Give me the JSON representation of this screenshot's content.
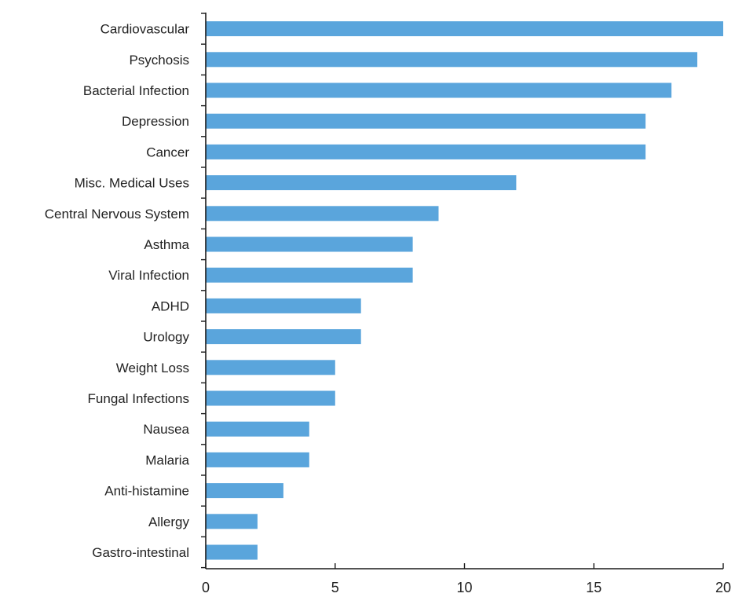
{
  "chart_data": {
    "type": "bar",
    "orientation": "horizontal",
    "title": "",
    "xlabel": "",
    "ylabel": "",
    "categories": [
      "Cardiovascular",
      "Psychosis",
      "Bacterial Infection",
      "Depression",
      "Cancer",
      "Misc. Medical Uses",
      "Central Nervous System",
      "Asthma",
      "Viral Infection",
      "ADHD",
      "Urology",
      "Weight Loss",
      "Fungal Infections",
      "Nausea",
      "Malaria",
      "Anti-histamine",
      "Allergy",
      "Gastro-intestinal"
    ],
    "values": [
      20,
      19,
      18,
      17,
      17,
      12,
      9,
      8,
      8,
      6,
      6,
      5,
      5,
      4,
      4,
      3,
      2,
      2
    ],
    "xlim": [
      0,
      20
    ],
    "xticks": [
      0,
      5,
      10,
      15,
      20
    ],
    "xtick_labels": [
      "0",
      "5",
      "10",
      "15",
      "20"
    ],
    "bar_color": "#5aa5dc",
    "grid": false,
    "legend": "none"
  }
}
